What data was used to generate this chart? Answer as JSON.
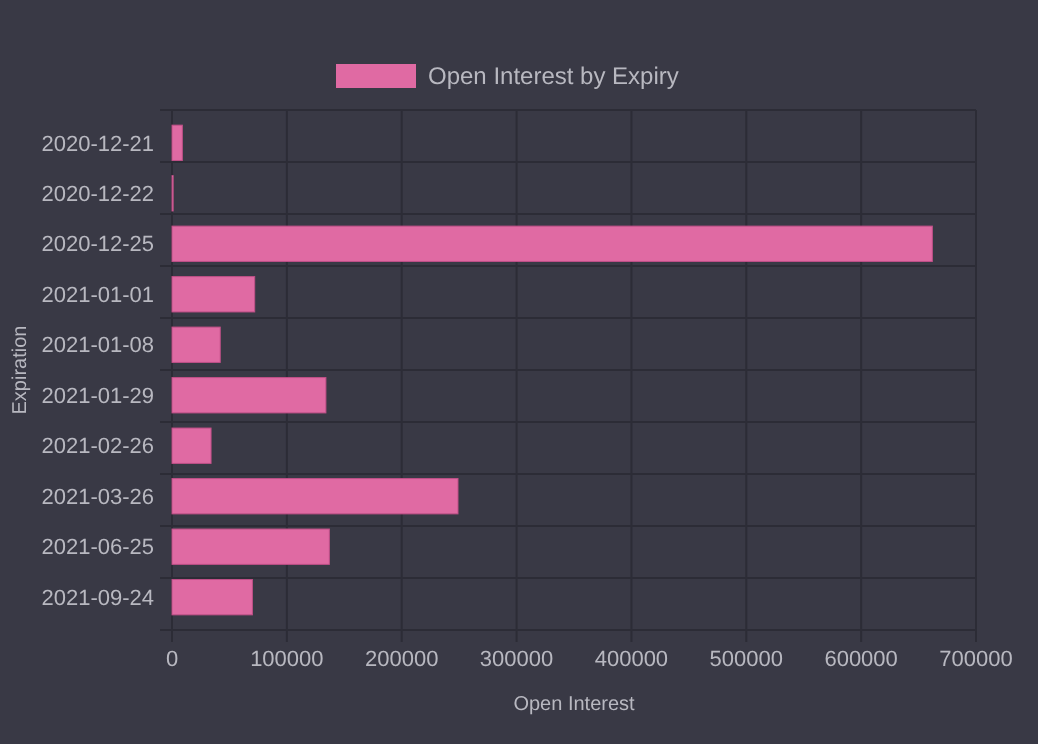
{
  "chart_data": {
    "type": "bar",
    "orientation": "horizontal",
    "xlabel": "Open Interest",
    "ylabel": "Expiration",
    "categories": [
      "2020-12-21",
      "2020-12-22",
      "2020-12-25",
      "2021-01-01",
      "2021-01-08",
      "2021-01-29",
      "2021-02-26",
      "2021-03-26",
      "2021-06-25",
      "2021-09-24"
    ],
    "series": [
      {
        "name": "Open Interest by Expiry",
        "color": "#e06aa3",
        "values": [
          9000,
          1000,
          662000,
          72000,
          42000,
          134000,
          34000,
          249000,
          137000,
          70000
        ]
      }
    ],
    "xlim": [
      0,
      700000
    ],
    "xticks": [
      0,
      100000,
      200000,
      300000,
      400000,
      500000,
      600000,
      700000
    ],
    "grid": true,
    "legend": "top"
  }
}
